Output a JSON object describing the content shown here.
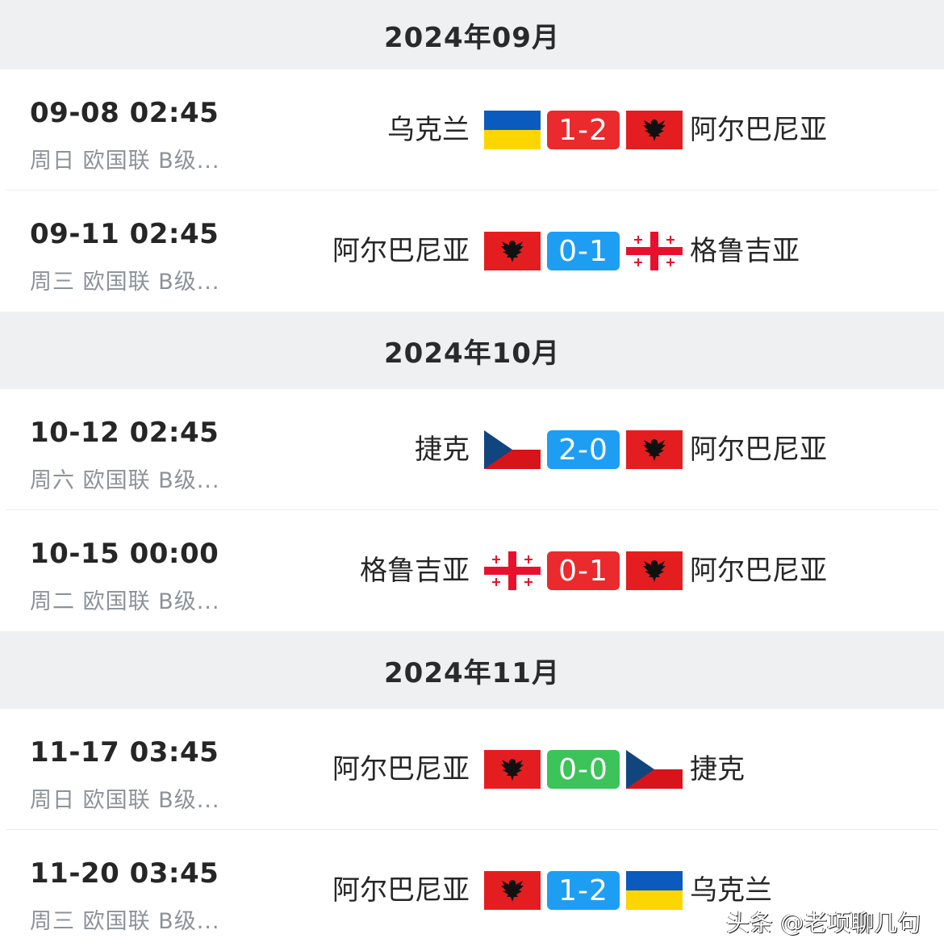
{
  "colors": {
    "loss": "#ea2a2d",
    "win": "#1e9ef2",
    "draw": "#3cc35a"
  },
  "groups": [
    {
      "month": "2024年09月",
      "matches": [
        {
          "time": "09-08 02:45",
          "sub": "周日 欧国联 B级...",
          "home": "乌克兰",
          "home_flag": "ukraine",
          "score": "1-2",
          "result": "loss",
          "away": "阿尔巴尼亚",
          "away_flag": "albania"
        },
        {
          "time": "09-11 02:45",
          "sub": "周三 欧国联 B级...",
          "home": "阿尔巴尼亚",
          "home_flag": "albania",
          "score": "0-1",
          "result": "win",
          "away": "格鲁吉亚",
          "away_flag": "georgia"
        }
      ]
    },
    {
      "month": "2024年10月",
      "matches": [
        {
          "time": "10-12 02:45",
          "sub": "周六 欧国联 B级...",
          "home": "捷克",
          "home_flag": "czech",
          "score": "2-0",
          "result": "win",
          "away": "阿尔巴尼亚",
          "away_flag": "albania"
        },
        {
          "time": "10-15 00:00",
          "sub": "周二 欧国联 B级...",
          "home": "格鲁吉亚",
          "home_flag": "georgia",
          "score": "0-1",
          "result": "loss",
          "away": "阿尔巴尼亚",
          "away_flag": "albania"
        }
      ]
    },
    {
      "month": "2024年11月",
      "matches": [
        {
          "time": "11-17 03:45",
          "sub": "周日 欧国联 B级...",
          "home": "阿尔巴尼亚",
          "home_flag": "albania",
          "score": "0-0",
          "result": "draw",
          "away": "捷克",
          "away_flag": "czech"
        },
        {
          "time": "11-20 03:45",
          "sub": "周三 欧国联 B级...",
          "home": "阿尔巴尼亚",
          "home_flag": "albania",
          "score": "1-2",
          "result": "win",
          "away": "乌克兰",
          "away_flag": "ukraine"
        }
      ]
    }
  ],
  "watermark": "头条 @老项聊几句"
}
